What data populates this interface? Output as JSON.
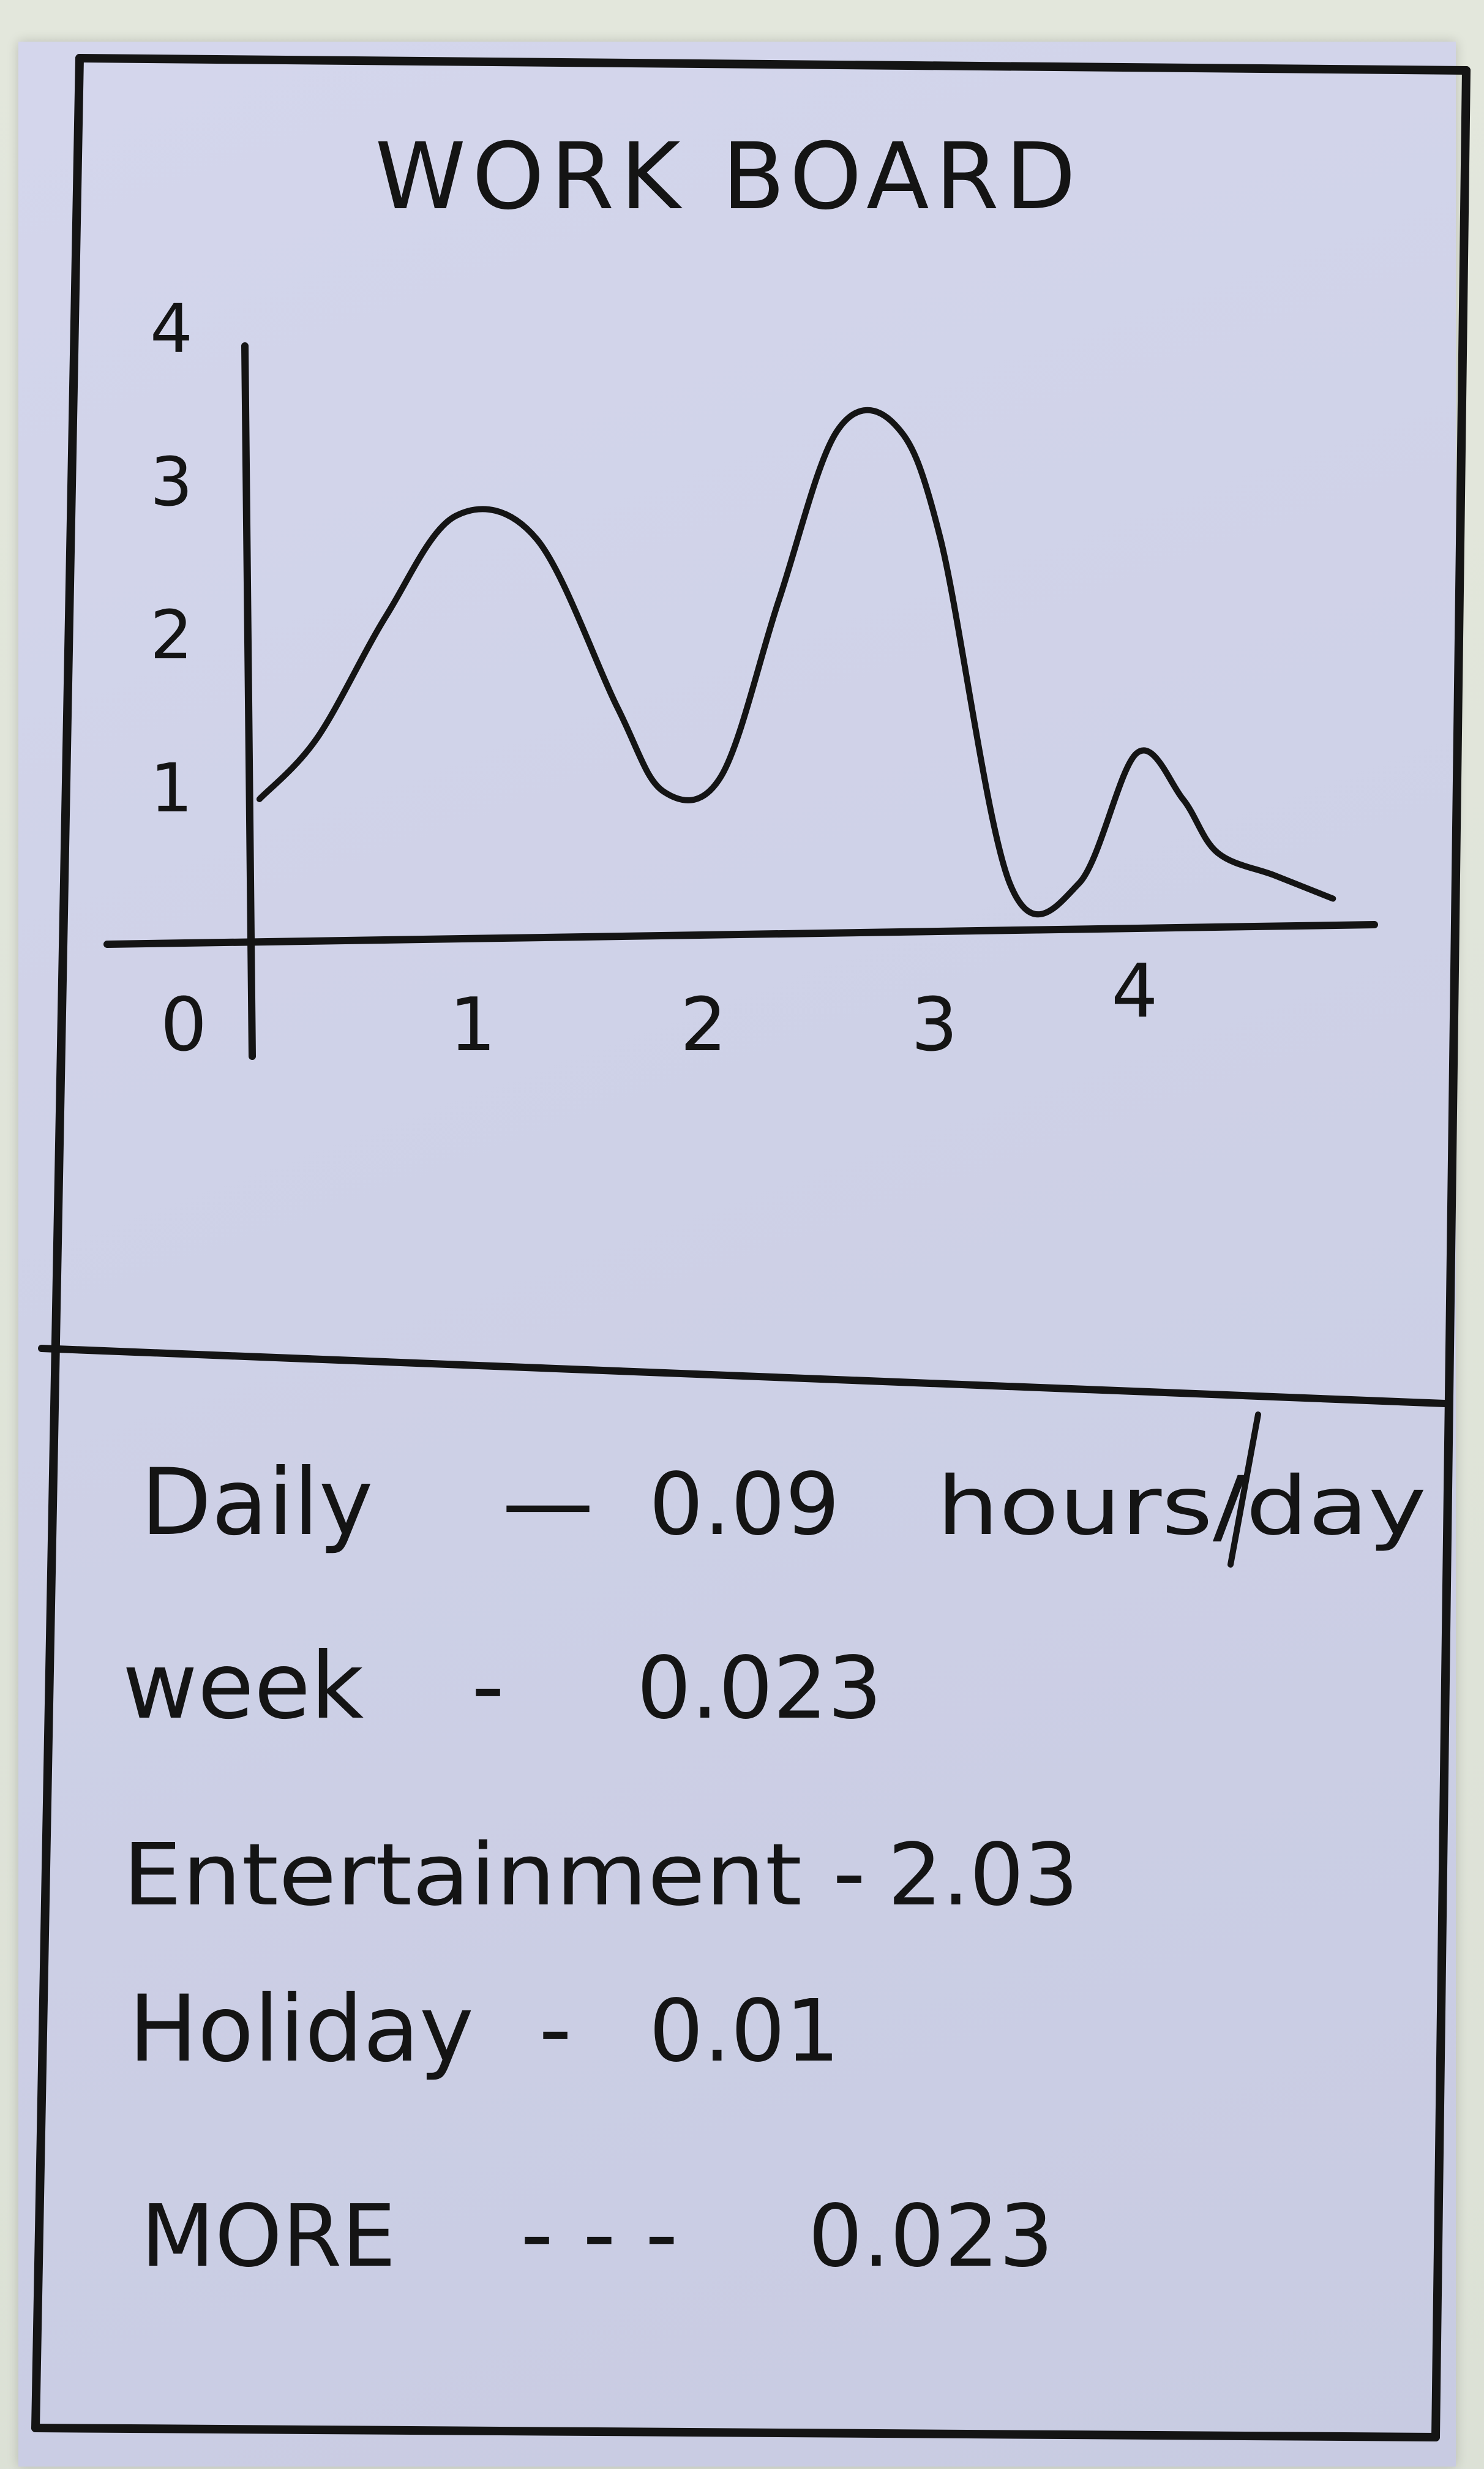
{
  "title": "WORK BOARD",
  "chart_data": {
    "type": "line",
    "title": "WORK BOARD",
    "xlabel": "",
    "ylabel": "",
    "xlim": [
      0,
      4.8
    ],
    "ylim": [
      0,
      4
    ],
    "x_ticks": [
      "0",
      "1",
      "2",
      "3",
      "4"
    ],
    "y_ticks": [
      "1",
      "2",
      "3",
      "4"
    ],
    "grid": false,
    "series": [
      {
        "x": [
          0.05,
          0.3,
          0.6,
          0.9,
          1.25,
          1.6,
          1.8,
          2.05,
          2.3,
          2.55,
          2.8,
          3.0,
          3.3,
          3.6,
          3.85,
          4.05,
          4.2,
          4.45,
          4.7
        ],
        "values": [
          0.9,
          1.3,
          2.1,
          2.75,
          2.6,
          1.5,
          0.95,
          1.05,
          2.2,
          3.3,
          3.35,
          2.6,
          0.35,
          0.35,
          1.2,
          0.9,
          0.55,
          0.4,
          0.25
        ]
      }
    ]
  },
  "stats": [
    {
      "label": "Daily",
      "sep": "—",
      "value": "0.09",
      "unit": "hours/day"
    },
    {
      "label": "week",
      "sep": "-",
      "value": "0.023"
    },
    {
      "label": "Entertainment",
      "sep": "-",
      "value": "2.03"
    },
    {
      "label": "Holiday",
      "sep": "-",
      "value": "0.01"
    },
    {
      "label": "MORE",
      "sep": "- - -",
      "value": "0.023"
    }
  ]
}
